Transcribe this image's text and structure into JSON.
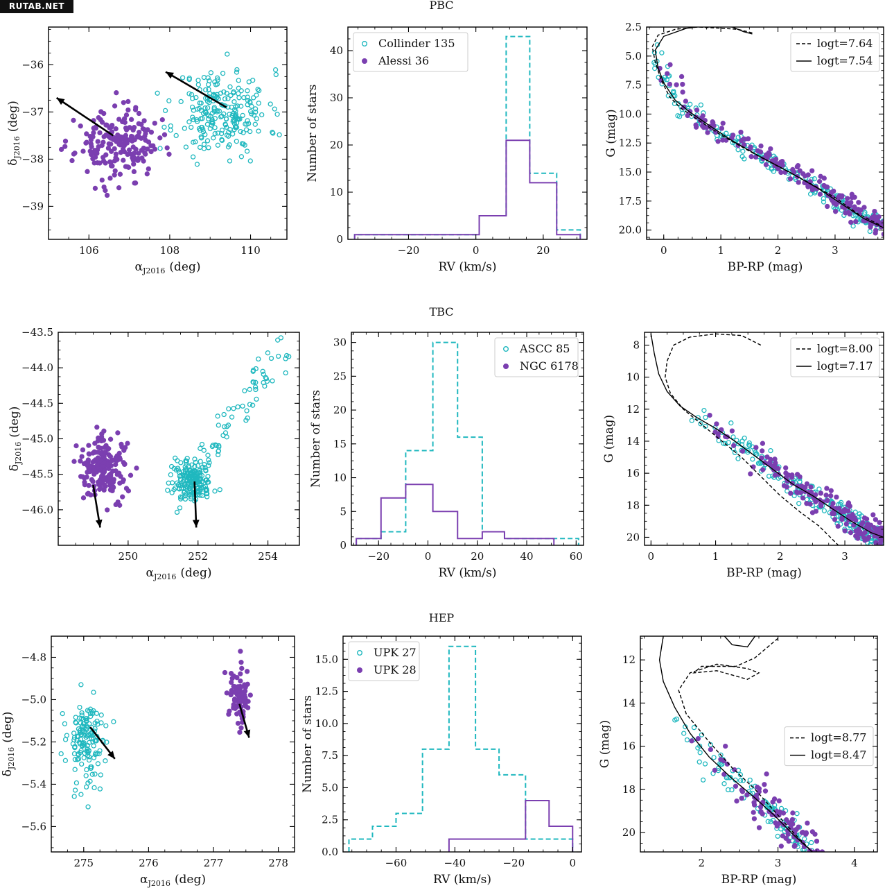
{
  "watermark": "RUTAB.NET",
  "colors": {
    "cyan": "#20b8bf",
    "purple": "#7b3fb0",
    "black": "#000000"
  },
  "row_titles": [
    "PBC",
    "TBC",
    "HEP"
  ],
  "chart_data": [
    {
      "id": "pbc_sky",
      "type": "scatter",
      "xlabel_main": "α",
      "xlabel_sub": "J2016",
      "xlabel_unit": "(deg)",
      "ylabel_main": "δ",
      "ylabel_sub": "J2016",
      "ylabel_unit": "(deg)",
      "xlim": [
        105.0,
        110.9
      ],
      "ylim": [
        -39.7,
        -35.2
      ],
      "xticks": [
        106,
        108,
        110
      ],
      "yticks": [
        -39,
        -38,
        -37,
        -36
      ],
      "clusters": [
        {
          "color": "cyan",
          "filled": false,
          "center": [
            109.3,
            -37.0
          ],
          "spread": [
            0.95,
            0.75
          ],
          "n": 230,
          "seed": 11
        },
        {
          "color": "purple",
          "filled": true,
          "center": [
            106.7,
            -37.7
          ],
          "spread": [
            0.85,
            0.6
          ],
          "n": 200,
          "seed": 23
        }
      ],
      "arrows": [
        {
          "from": [
            109.4,
            -36.9
          ],
          "to": [
            107.9,
            -36.15
          ]
        },
        {
          "from": [
            106.6,
            -37.5
          ],
          "to": [
            105.2,
            -36.7
          ]
        }
      ]
    },
    {
      "id": "pbc_rv",
      "type": "histogram",
      "xlabel": "RV (km/s)",
      "ylabel": "Number of stars",
      "xlim": [
        -38,
        33
      ],
      "ylim": [
        0,
        45
      ],
      "xticks": [
        -20,
        0,
        20
      ],
      "yticks": [
        0,
        10,
        20,
        30,
        40
      ],
      "series": [
        {
          "name": "Collinder 135",
          "color": "cyan",
          "style": "dashed",
          "edges": [
            -36,
            -29,
            -22,
            -14,
            -7,
            1,
            9,
            16,
            24,
            31
          ],
          "counts": [
            1,
            1,
            1,
            1,
            1,
            5,
            43,
            14,
            2
          ]
        },
        {
          "name": "Alessi 36",
          "color": "purple",
          "style": "solid",
          "edges": [
            -36,
            -29,
            -22,
            -14,
            -7,
            1,
            9,
            16,
            24,
            31
          ],
          "counts": [
            1,
            1,
            1,
            1,
            1,
            5,
            21,
            12,
            1
          ]
        }
      ],
      "legend": {
        "placement": "top-left",
        "marker_filled": [
          false,
          true
        ]
      }
    },
    {
      "id": "pbc_cmd",
      "type": "scatter",
      "xlabel": "BP-RP (mag)",
      "ylabel": "G (mag)",
      "xlim": [
        -0.3,
        3.85
      ],
      "ylim": [
        20.8,
        2.5
      ],
      "yinverted": true,
      "xticks": [
        0,
        1,
        2,
        3
      ],
      "yticks": [
        2.5,
        5.0,
        7.5,
        10.0,
        12.5,
        15.0,
        17.5,
        20.0
      ],
      "ytick_labels": [
        "2.5",
        "5.0",
        "7.5",
        "10.0",
        "12.5",
        "15.0",
        "17.5",
        "20.0"
      ],
      "isochrones": [
        {
          "label": "logt=7.64",
          "style": "dashed",
          "points": [
            [
              1.55,
              3.0
            ],
            [
              1.3,
              2.7
            ],
            [
              1.0,
              2.6
            ],
            [
              0.6,
              2.5
            ],
            [
              0.2,
              2.7
            ],
            [
              -0.1,
              3.2
            ],
            [
              -0.2,
              4.2
            ],
            [
              -0.15,
              5.5
            ],
            [
              -0.05,
              7.0
            ],
            [
              0.1,
              8.5
            ],
            [
              0.3,
              9.5
            ],
            [
              0.6,
              10.5
            ],
            [
              1.0,
              11.8
            ],
            [
              1.5,
              13.2
            ],
            [
              2.0,
              14.5
            ],
            [
              2.5,
              15.8
            ],
            [
              3.0,
              17.2
            ],
            [
              3.4,
              18.6
            ],
            [
              3.8,
              19.6
            ]
          ]
        },
        {
          "label": "logt=7.54",
          "style": "solid",
          "points": [
            [
              1.55,
              3.1
            ],
            [
              1.4,
              2.9
            ],
            [
              1.2,
              2.5
            ],
            [
              0.9,
              2.3
            ],
            [
              0.4,
              2.6
            ],
            [
              0.0,
              3.3
            ],
            [
              -0.15,
              4.5
            ],
            [
              -0.1,
              6.0
            ],
            [
              0.0,
              7.3
            ],
            [
              0.2,
              8.8
            ],
            [
              0.45,
              9.8
            ],
            [
              0.8,
              11.0
            ],
            [
              1.2,
              12.3
            ],
            [
              1.7,
              13.7
            ],
            [
              2.2,
              15.0
            ],
            [
              2.7,
              16.4
            ],
            [
              3.1,
              17.7
            ],
            [
              3.5,
              19.0
            ],
            [
              3.85,
              19.8
            ]
          ]
        }
      ],
      "legend": {
        "placement": "top-right"
      }
    },
    {
      "id": "tbc_sky",
      "type": "scatter",
      "xlabel_main": "α",
      "xlabel_sub": "J2016",
      "xlabel_unit": "(deg)",
      "ylabel_main": "δ",
      "ylabel_sub": "J2016",
      "ylabel_unit": "(deg)",
      "xlim": [
        248.0,
        254.9
      ],
      "ylim": [
        -46.5,
        -43.5
      ],
      "xticks": [
        250,
        252,
        254
      ],
      "yticks": [
        -46.0,
        -45.5,
        -45.0,
        -44.5,
        -44.0,
        -43.5
      ],
      "ytick_labels": [
        "−46.0",
        "−45.5",
        "−45.0",
        "−44.5",
        "−44.0",
        "−43.5"
      ],
      "clusters": [
        {
          "color": "cyan",
          "filled": false,
          "center": [
            251.8,
            -45.6
          ],
          "spread": [
            0.5,
            0.25
          ],
          "n": 200,
          "seed": 31
        },
        {
          "color": "cyan",
          "filled": false,
          "line": [
            [
              252.2,
              -45.2
            ],
            [
              254.5,
              -43.7
            ]
          ],
          "n": 60,
          "seed": 37
        },
        {
          "color": "purple",
          "filled": true,
          "center": [
            249.3,
            -45.4
          ],
          "spread": [
            0.6,
            0.35
          ],
          "n": 190,
          "seed": 41
        }
      ],
      "arrows": [
        {
          "from": [
            249.0,
            -45.65
          ],
          "to": [
            249.2,
            -46.25
          ]
        },
        {
          "from": [
            251.9,
            -45.6
          ],
          "to": [
            251.95,
            -46.25
          ]
        }
      ]
    },
    {
      "id": "tbc_rv",
      "type": "histogram",
      "xlabel": "RV (km/s)",
      "ylabel": "Number of stars",
      "xlim": [
        -31,
        63
      ],
      "ylim": [
        0,
        31.5
      ],
      "xticks": [
        -20,
        0,
        20,
        40,
        60
      ],
      "yticks": [
        0,
        5,
        10,
        15,
        20,
        25,
        30
      ],
      "series": [
        {
          "name": "ASCC 85",
          "color": "cyan",
          "style": "dashed",
          "edges": [
            -29,
            -19,
            -9,
            2,
            12,
            22,
            31,
            41,
            51,
            61
          ],
          "counts": [
            1,
            2,
            14,
            30,
            16,
            2,
            1,
            1,
            1
          ]
        },
        {
          "name": "NGC 6178",
          "color": "purple",
          "style": "solid",
          "edges": [
            -29,
            -19,
            -9,
            2,
            12,
            22,
            31,
            41,
            51
          ],
          "counts": [
            1,
            7,
            9,
            5,
            1,
            2,
            1,
            1
          ]
        }
      ],
      "legend": {
        "placement": "top-right",
        "marker_filled": [
          false,
          true
        ]
      }
    },
    {
      "id": "tbc_cmd",
      "type": "scatter",
      "xlabel": "BP-RP (mag)",
      "ylabel": "G (mag)",
      "xlim": [
        -0.1,
        3.6
      ],
      "ylim": [
        20.5,
        7.2
      ],
      "yinverted": true,
      "xticks": [
        0,
        1,
        2,
        3
      ],
      "yticks": [
        8,
        10,
        12,
        14,
        16,
        18,
        20
      ],
      "isochrones": [
        {
          "label": "logt=8.00",
          "style": "dashed",
          "points": [
            [
              1.7,
              8.0
            ],
            [
              1.55,
              7.7
            ],
            [
              1.4,
              7.4
            ],
            [
              1.0,
              7.3
            ],
            [
              0.6,
              7.5
            ],
            [
              0.35,
              8.0
            ],
            [
              0.25,
              9.0
            ],
            [
              0.22,
              10.0
            ],
            [
              0.3,
              11.0
            ],
            [
              0.5,
              12.0
            ],
            [
              0.8,
              13.0
            ],
            [
              1.1,
              14.0
            ],
            [
              1.4,
              15.0
            ],
            [
              1.7,
              16.2
            ],
            [
              2.0,
              17.4
            ],
            [
              2.3,
              18.4
            ],
            [
              2.6,
              19.3
            ],
            [
              2.9,
              20.5
            ]
          ]
        },
        {
          "label": "logt=7.17",
          "style": "solid",
          "points": [
            [
              0.0,
              7.3
            ],
            [
              0.05,
              8.5
            ],
            [
              0.12,
              9.8
            ],
            [
              0.25,
              10.9
            ],
            [
              0.45,
              11.8
            ],
            [
              0.7,
              12.5
            ],
            [
              1.0,
              13.2
            ],
            [
              1.3,
              14.0
            ],
            [
              1.6,
              14.9
            ],
            [
              1.9,
              15.8
            ],
            [
              2.2,
              16.7
            ],
            [
              2.5,
              17.4
            ],
            [
              2.8,
              18.2
            ],
            [
              3.1,
              19.0
            ],
            [
              3.4,
              19.7
            ],
            [
              3.6,
              20.0
            ]
          ]
        }
      ],
      "legend": {
        "placement": "top-right"
      }
    },
    {
      "id": "hep_sky",
      "type": "scatter",
      "xlabel_main": "α",
      "xlabel_sub": "J2016",
      "xlabel_unit": "(deg)",
      "ylabel_main": "δ",
      "ylabel_sub": "J2016",
      "ylabel_unit": "(deg)",
      "xlim": [
        274.5,
        278.25
      ],
      "ylim": [
        -5.72,
        -4.7
      ],
      "xticks": [
        275,
        276,
        277,
        278
      ],
      "yticks": [
        -5.6,
        -5.4,
        -5.2,
        -5.0,
        -4.8
      ],
      "ytick_labels": [
        "−5.6",
        "−5.4",
        "−5.2",
        "−5.0",
        "−4.8"
      ],
      "clusters": [
        {
          "color": "cyan",
          "filled": false,
          "center": [
            275.05,
            -5.2
          ],
          "spread": [
            0.25,
            0.18
          ],
          "n": 150,
          "seed": 53
        },
        {
          "color": "purple",
          "filled": true,
          "center": [
            277.4,
            -5.0
          ],
          "spread": [
            0.13,
            0.1
          ],
          "n": 85,
          "seed": 59
        }
      ],
      "arrows": [
        {
          "from": [
            275.1,
            -5.13
          ],
          "to": [
            275.48,
            -5.28
          ]
        },
        {
          "from": [
            277.4,
            -5.02
          ],
          "to": [
            277.55,
            -5.18
          ]
        }
      ]
    },
    {
      "id": "hep_rv",
      "type": "histogram",
      "xlabel": "RV (km/s)",
      "ylabel": "Number of stars",
      "xlim": [
        -78,
        3
      ],
      "ylim": [
        0,
        16.8
      ],
      "xticks": [
        -60,
        -40,
        -20,
        0
      ],
      "yticks": [
        0,
        2.5,
        5.0,
        7.5,
        10.0,
        12.5,
        15.0
      ],
      "ytick_labels": [
        "0.0",
        "2.5",
        "5.0",
        "7.5",
        "10.0",
        "12.5",
        "15.0"
      ],
      "series": [
        {
          "name": "UPK 27",
          "color": "cyan",
          "style": "dashed",
          "edges": [
            -76,
            -68,
            -60,
            -51,
            -42,
            -33,
            -25,
            -16,
            -8,
            0
          ],
          "counts": [
            1,
            2,
            3,
            8,
            16,
            8,
            6,
            1,
            1
          ]
        },
        {
          "name": "UPK 28",
          "color": "purple",
          "style": "solid",
          "edges": [
            -42,
            -33,
            -25,
            -16,
            -8,
            0
          ],
          "counts": [
            1,
            1,
            1,
            4,
            2
          ]
        }
      ],
      "legend": {
        "placement": "top-left",
        "marker_filled": [
          false,
          true
        ]
      }
    },
    {
      "id": "hep_cmd",
      "type": "scatter",
      "xlabel": "BP-RP (mag)",
      "ylabel": "G (mag)",
      "xlim": [
        1.2,
        4.3
      ],
      "ylim": [
        20.9,
        10.9
      ],
      "yinverted": true,
      "xticks": [
        2,
        3,
        4
      ],
      "yticks": [
        12,
        14,
        16,
        18,
        20
      ],
      "isochrones": [
        {
          "label": "logt=8.77",
          "style": "dashed",
          "points": [
            [
              3.0,
              11.0
            ],
            [
              2.7,
              11.9
            ],
            [
              2.45,
              12.3
            ],
            [
              2.0,
              12.3
            ],
            [
              1.9,
              12.6
            ],
            [
              2.2,
              12.5
            ],
            [
              2.6,
              12.9
            ],
            [
              2.75,
              12.6
            ],
            [
              2.6,
              12.4
            ],
            [
              2.2,
              12.2
            ],
            [
              1.85,
              12.6
            ],
            [
              1.7,
              13.4
            ],
            [
              1.8,
              14.5
            ],
            [
              2.1,
              15.8
            ],
            [
              2.4,
              17.0
            ],
            [
              2.7,
              18.0
            ],
            [
              2.95,
              19.0
            ],
            [
              3.2,
              20.0
            ],
            [
              3.45,
              20.9
            ]
          ]
        },
        {
          "label": "logt=8.47",
          "style": "solid",
          "points": [
            [
              1.5,
              10.9
            ],
            [
              1.45,
              12.0
            ],
            [
              1.5,
              13.0
            ],
            [
              1.65,
              14.2
            ],
            [
              1.85,
              15.4
            ],
            [
              2.1,
              16.5
            ],
            [
              2.4,
              17.5
            ],
            [
              2.7,
              18.4
            ],
            [
              2.95,
              19.2
            ],
            [
              3.2,
              20.1
            ],
            [
              3.45,
              20.9
            ]
          ]
        },
        {
          "label": "",
          "style": "solid",
          "legend": false,
          "points": [
            [
              2.3,
              10.9
            ],
            [
              2.4,
              11.3
            ],
            [
              2.6,
              11.4
            ],
            [
              2.7,
              10.9
            ]
          ]
        }
      ],
      "legend": {
        "placement": "middle-right"
      }
    }
  ]
}
